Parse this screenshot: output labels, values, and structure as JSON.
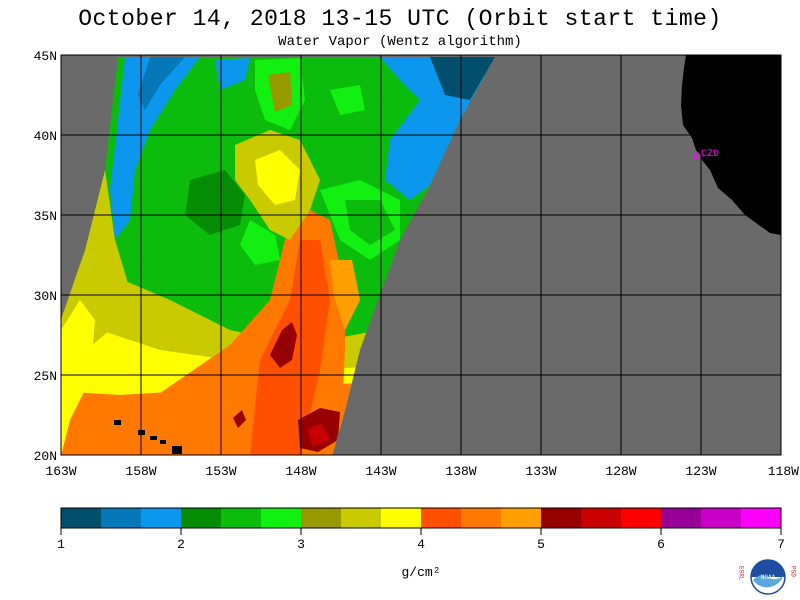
{
  "header": {
    "title": "October 14, 2018  13-15 UTC  (Orbit start time)",
    "subtitle": "Water Vapor (Wentz algorithm)"
  },
  "map": {
    "lat_labels": [
      "45N",
      "40N",
      "35N",
      "30N",
      "25N",
      "20N"
    ],
    "lon_labels": [
      "163W",
      "158W",
      "153W",
      "148W",
      "143W",
      "138W",
      "133W",
      "128W",
      "123W",
      "118W"
    ],
    "station_label": "CZD",
    "colors": {
      "no_data": "#6a6a6a",
      "land": "#000000",
      "station": "#ff00ff"
    }
  },
  "colorbar": {
    "ticks": [
      "1",
      "2",
      "3",
      "4",
      "5",
      "6",
      "7"
    ],
    "unit": "g/cm²",
    "colors": [
      "#024f6d",
      "#0678b8",
      "#0c97ee",
      "#058c05",
      "#0cbc0c",
      "#12f012",
      "#989800",
      "#caca00",
      "#ffff00",
      "#ff5000",
      "#ff7800",
      "#ffa000",
      "#960000",
      "#c80000",
      "#fa0000",
      "#960096",
      "#c800c8",
      "#fa00fa"
    ]
  },
  "logo": {
    "left_letters": "ESRL",
    "right_letters": "PSD",
    "text": "NOAA"
  }
}
